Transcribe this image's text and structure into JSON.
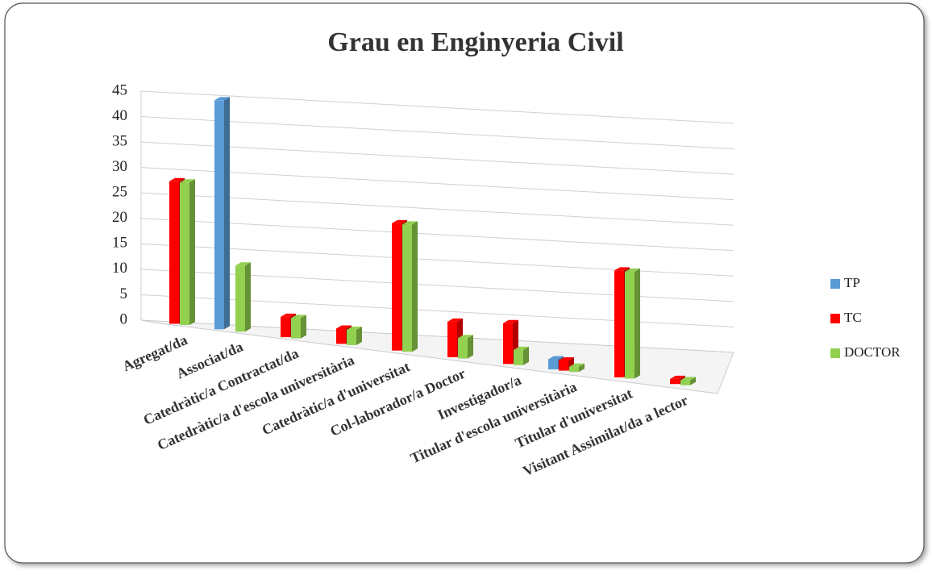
{
  "chart_data": {
    "type": "bar",
    "title": "Grau en Enginyeria Civil",
    "categories": [
      "Agregat/da",
      "Associat/da",
      "Catedràtic/a Contractat/da",
      "Catedràtic/a d'escola universitària",
      "Catedràtic/a d'universitat",
      "Col-laborador/a Doctor",
      "Investigador/a",
      "Titular d'escola universitària",
      "Titular d'universitat",
      "Visitant Assimilat/da a lector"
    ],
    "series": [
      {
        "name": "TP",
        "color": "#5b9bd5",
        "values": [
          0,
          45,
          0,
          0,
          0,
          0,
          0,
          2,
          0,
          0
        ]
      },
      {
        "name": "TC",
        "color": "#ff0000",
        "values": [
          28,
          0,
          4,
          3,
          25,
          7,
          8,
          2,
          21,
          1
        ]
      },
      {
        "name": "DOCTOR",
        "color": "#92d050",
        "values": [
          28,
          13,
          4,
          3,
          25,
          4,
          3,
          1,
          21,
          1
        ]
      }
    ],
    "ylim": [
      0,
      45
    ],
    "yticks": [
      0,
      5,
      10,
      15,
      20,
      25,
      30,
      35,
      40,
      45
    ],
    "grid": true,
    "legend": "right"
  }
}
